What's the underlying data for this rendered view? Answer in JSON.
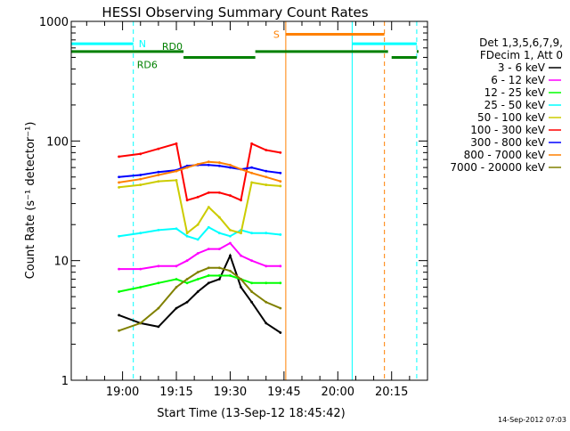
{
  "chart_data": {
    "type": "line",
    "title": "HESSI Observing Summary Count Rates",
    "xlabel": "Start Time (13-Sep-12 18:45:42)",
    "ylabel": "Count Rate (s⁻¹ detector⁻¹)",
    "y_scale": "log",
    "ylim": [
      1,
      1000
    ],
    "xlim": [
      "18:45:42",
      "20:25:00"
    ],
    "x_ticks": [
      "19:00",
      "19:15",
      "19:30",
      "19:45",
      "20:00",
      "20:15"
    ],
    "y_ticks": [
      "1",
      "10",
      "100",
      "1000"
    ],
    "legend": {
      "placement": "right",
      "header": [
        "Det 1,3,5,6,7,9,",
        "FDecim 1, Att 0"
      ]
    },
    "series": [
      {
        "name": "3 - 6 keV",
        "color": "#000000",
        "x": [
          "18:59:00",
          "19:05:00",
          "19:10:00",
          "19:15:00",
          "19:18:00",
          "19:21:00",
          "19:24:00",
          "19:27:00",
          "19:30:00",
          "19:33:00",
          "19:36:00",
          "19:40:00",
          "19:44:00"
        ],
        "values": [
          3.5,
          3.0,
          2.8,
          4.0,
          4.5,
          5.5,
          6.5,
          7.0,
          11.0,
          6.0,
          4.5,
          3.0,
          2.5
        ]
      },
      {
        "name": "6 - 12 keV",
        "color": "#ff00ff",
        "x": [
          "18:59:00",
          "19:05:00",
          "19:10:00",
          "19:15:00",
          "19:18:00",
          "19:21:00",
          "19:24:00",
          "19:27:00",
          "19:30:00",
          "19:33:00",
          "19:36:00",
          "19:40:00",
          "19:44:00"
        ],
        "values": [
          8.5,
          8.5,
          9.0,
          9.0,
          10.0,
          11.5,
          12.5,
          12.5,
          14.0,
          11.0,
          10.0,
          9.0,
          9.0
        ]
      },
      {
        "name": "12 - 25 keV",
        "color": "#00ff00",
        "x": [
          "18:59:00",
          "19:05:00",
          "19:10:00",
          "19:15:00",
          "19:18:00",
          "19:21:00",
          "19:24:00",
          "19:27:00",
          "19:30:00",
          "19:33:00",
          "19:36:00",
          "19:40:00",
          "19:44:00"
        ],
        "values": [
          5.5,
          6.0,
          6.5,
          7.0,
          6.5,
          7.0,
          7.5,
          7.5,
          7.5,
          7.0,
          6.5,
          6.5,
          6.5
        ]
      },
      {
        "name": "25 - 50 keV",
        "color": "#00ffff",
        "x": [
          "18:59:00",
          "19:05:00",
          "19:10:00",
          "19:15:00",
          "19:18:00",
          "19:21:00",
          "19:24:00",
          "19:27:00",
          "19:30:00",
          "19:33:00",
          "19:36:00",
          "19:40:00",
          "19:44:00"
        ],
        "values": [
          16,
          17,
          18,
          18.5,
          16,
          15,
          19,
          17,
          16,
          18,
          17,
          17,
          16.5
        ]
      },
      {
        "name": "50 - 100 keV",
        "color": "#cccc00",
        "x": [
          "18:59:00",
          "19:05:00",
          "19:10:00",
          "19:15:00",
          "19:18:00",
          "19:21:00",
          "19:24:00",
          "19:27:00",
          "19:30:00",
          "19:33:00",
          "19:36:00",
          "19:40:00",
          "19:44:00"
        ],
        "values": [
          41,
          43,
          46,
          47,
          17,
          20,
          28,
          23,
          18,
          17,
          45,
          43,
          42
        ]
      },
      {
        "name": "100 - 300 keV",
        "color": "#ff0000",
        "x": [
          "18:59:00",
          "19:05:00",
          "19:10:00",
          "19:15:00",
          "19:18:00",
          "19:21:00",
          "19:24:00",
          "19:27:00",
          "19:30:00",
          "19:33:00",
          "19:36:00",
          "19:40:00",
          "19:44:00"
        ],
        "values": [
          74,
          78,
          86,
          95,
          32,
          34,
          37,
          37,
          35,
          32,
          95,
          84,
          80
        ]
      },
      {
        "name": "300 - 800 keV",
        "color": "#0000ff",
        "x": [
          "18:59:00",
          "19:05:00",
          "19:10:00",
          "19:15:00",
          "19:18:00",
          "19:21:00",
          "19:24:00",
          "19:27:00",
          "19:30:00",
          "19:33:00",
          "19:36:00",
          "19:40:00",
          "19:44:00"
        ],
        "values": [
          50,
          52,
          55,
          57,
          62,
          63,
          63,
          62,
          60,
          58,
          60,
          56,
          54
        ]
      },
      {
        "name": "800 - 7000 keV",
        "color": "#ff8000",
        "x": [
          "18:59:00",
          "19:05:00",
          "19:10:00",
          "19:15:00",
          "19:18:00",
          "19:21:00",
          "19:24:00",
          "19:27:00",
          "19:30:00",
          "19:33:00",
          "19:36:00",
          "19:40:00",
          "19:44:00"
        ],
        "values": [
          45,
          48,
          52,
          56,
          60,
          64,
          67,
          66,
          63,
          58,
          54,
          50,
          46
        ]
      },
      {
        "name": "7000 - 20000 keV",
        "color": "#808000",
        "x": [
          "18:59:00",
          "19:05:00",
          "19:10:00",
          "19:15:00",
          "19:18:00",
          "19:21:00",
          "19:24:00",
          "19:27:00",
          "19:30:00",
          "19:33:00",
          "19:36:00",
          "19:40:00",
          "19:44:00"
        ],
        "values": [
          2.6,
          3.0,
          4.0,
          6.0,
          7.0,
          8.0,
          8.7,
          8.7,
          8.2,
          7.0,
          5.5,
          4.5,
          4.0
        ]
      }
    ],
    "annotations": {
      "N": {
        "label": "N",
        "color": "#00ffff",
        "value": 650,
        "segments": [
          [
            "18:45:42",
            "19:03:00"
          ],
          [
            "20:04:00",
            "20:22:00"
          ]
        ],
        "markers": [
          "18:45:42",
          "19:03:00",
          "20:04:00",
          "20:22:00"
        ]
      },
      "S": {
        "label": "S",
        "color": "#ff8000",
        "value": 780,
        "segments": [
          [
            "19:45:30",
            "20:13:00"
          ]
        ],
        "markers": [
          "19:45:30",
          "20:13:00"
        ]
      },
      "RD0": {
        "label": "RD0",
        "color": "#008000",
        "value": 560,
        "segments": [
          [
            "18:45:42",
            "19:17:00"
          ],
          [
            "19:37:00",
            "20:14:00"
          ],
          [
            "20:22:00",
            "20:22:30"
          ]
        ]
      },
      "RD6": {
        "label": "RD6",
        "color": "#008000",
        "value": 500,
        "segments": [
          [
            "19:17:00",
            "19:37:00"
          ],
          [
            "20:15:00",
            "20:22:00"
          ]
        ]
      }
    }
  },
  "footer_timestamp": "14-Sep-2012 07:03"
}
